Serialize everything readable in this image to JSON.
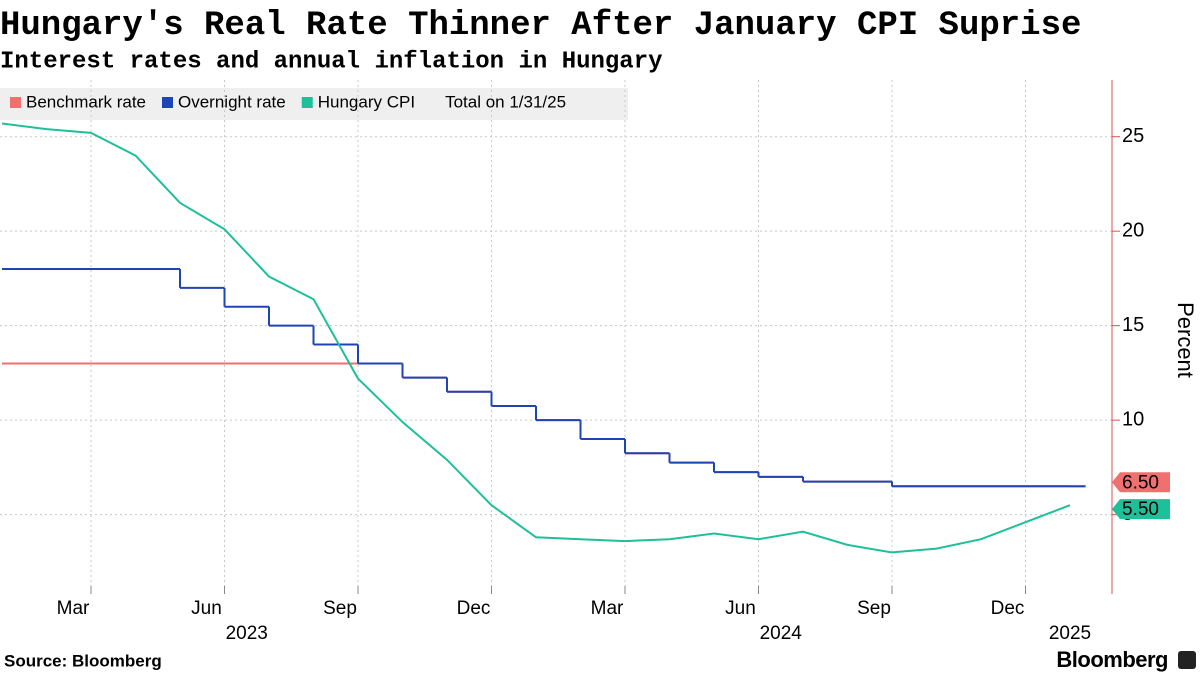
{
  "chart_data": {
    "type": "line",
    "title": "Hungary's Real Rate Thinner After January CPI Suprise",
    "subtitle": "Interest rates and annual inflation in Hungary",
    "legend_note": "Total on 1/31/25",
    "y_label": "Percent",
    "source": "Source: Bloomberg",
    "brand": "Bloomberg",
    "x": [
      "2023-01",
      "2023-02",
      "2023-03",
      "2023-04",
      "2023-05",
      "2023-06",
      "2023-07",
      "2023-08",
      "2023-09",
      "2023-10",
      "2023-11",
      "2023-12",
      "2024-01",
      "2024-02",
      "2024-03",
      "2024-04",
      "2024-05",
      "2024-06",
      "2024-07",
      "2024-08",
      "2024-09",
      "2024-10",
      "2024-11",
      "2024-12",
      "2025-01"
    ],
    "xticks": [
      {
        "value": "2023-03",
        "label": "Mar"
      },
      {
        "value": "2023-06",
        "label": "Jun"
      },
      {
        "value": "2023-09",
        "label": "Sep"
      },
      {
        "value": "2023-12",
        "label": "Dec"
      },
      {
        "value": "2024-03",
        "label": "Mar"
      },
      {
        "value": "2024-06",
        "label": "Jun"
      },
      {
        "value": "2024-09",
        "label": "Sep"
      },
      {
        "value": "2024-12",
        "label": "Dec"
      }
    ],
    "year_labels": [
      "2023",
      "2024",
      "2025"
    ],
    "ylim": [
      0.8,
      28
    ],
    "yticks": [
      5,
      10,
      15,
      20,
      25
    ],
    "grid": true,
    "series": [
      {
        "name": "Benchmark rate",
        "color": "#f07070",
        "step": true,
        "values": [
          13,
          13,
          13,
          13,
          13,
          13,
          13,
          13,
          13,
          12.25,
          11.5,
          10.75,
          10,
          9,
          8.25,
          7.75,
          7.25,
          7,
          6.75,
          6.75,
          6.5,
          6.5,
          6.5,
          6.5,
          6.5
        ],
        "value_labels": [
          null,
          null,
          null,
          null,
          null,
          null,
          null,
          null,
          null,
          null,
          null,
          null,
          null,
          null,
          null,
          null,
          null,
          null,
          null,
          null,
          null,
          null,
          null,
          null,
          "6.50"
        ]
      },
      {
        "name": "Overnight rate",
        "color": "#1f44b4",
        "step": true,
        "values": [
          18,
          18,
          18,
          18,
          17,
          16,
          15,
          14,
          13,
          12.25,
          11.5,
          10.75,
          10,
          9,
          8.25,
          7.75,
          7.25,
          7,
          6.75,
          6.75,
          6.5,
          6.5,
          6.5,
          6.5,
          6.5
        ]
      },
      {
        "name": "Hungary CPI",
        "color": "#1ec09a",
        "step": false,
        "values": [
          25.7,
          25.4,
          25.2,
          24.0,
          21.5,
          20.1,
          17.6,
          16.4,
          12.2,
          9.9,
          7.9,
          5.5,
          3.8,
          3.7,
          3.6,
          3.7,
          4.0,
          3.7,
          4.1,
          3.4,
          3.0,
          3.2,
          3.7,
          4.6,
          5.5
        ],
        "value_labels": [
          null,
          null,
          null,
          null,
          null,
          null,
          null,
          null,
          null,
          null,
          null,
          null,
          null,
          null,
          null,
          null,
          null,
          null,
          null,
          null,
          null,
          null,
          null,
          null,
          "5.50"
        ]
      }
    ]
  }
}
